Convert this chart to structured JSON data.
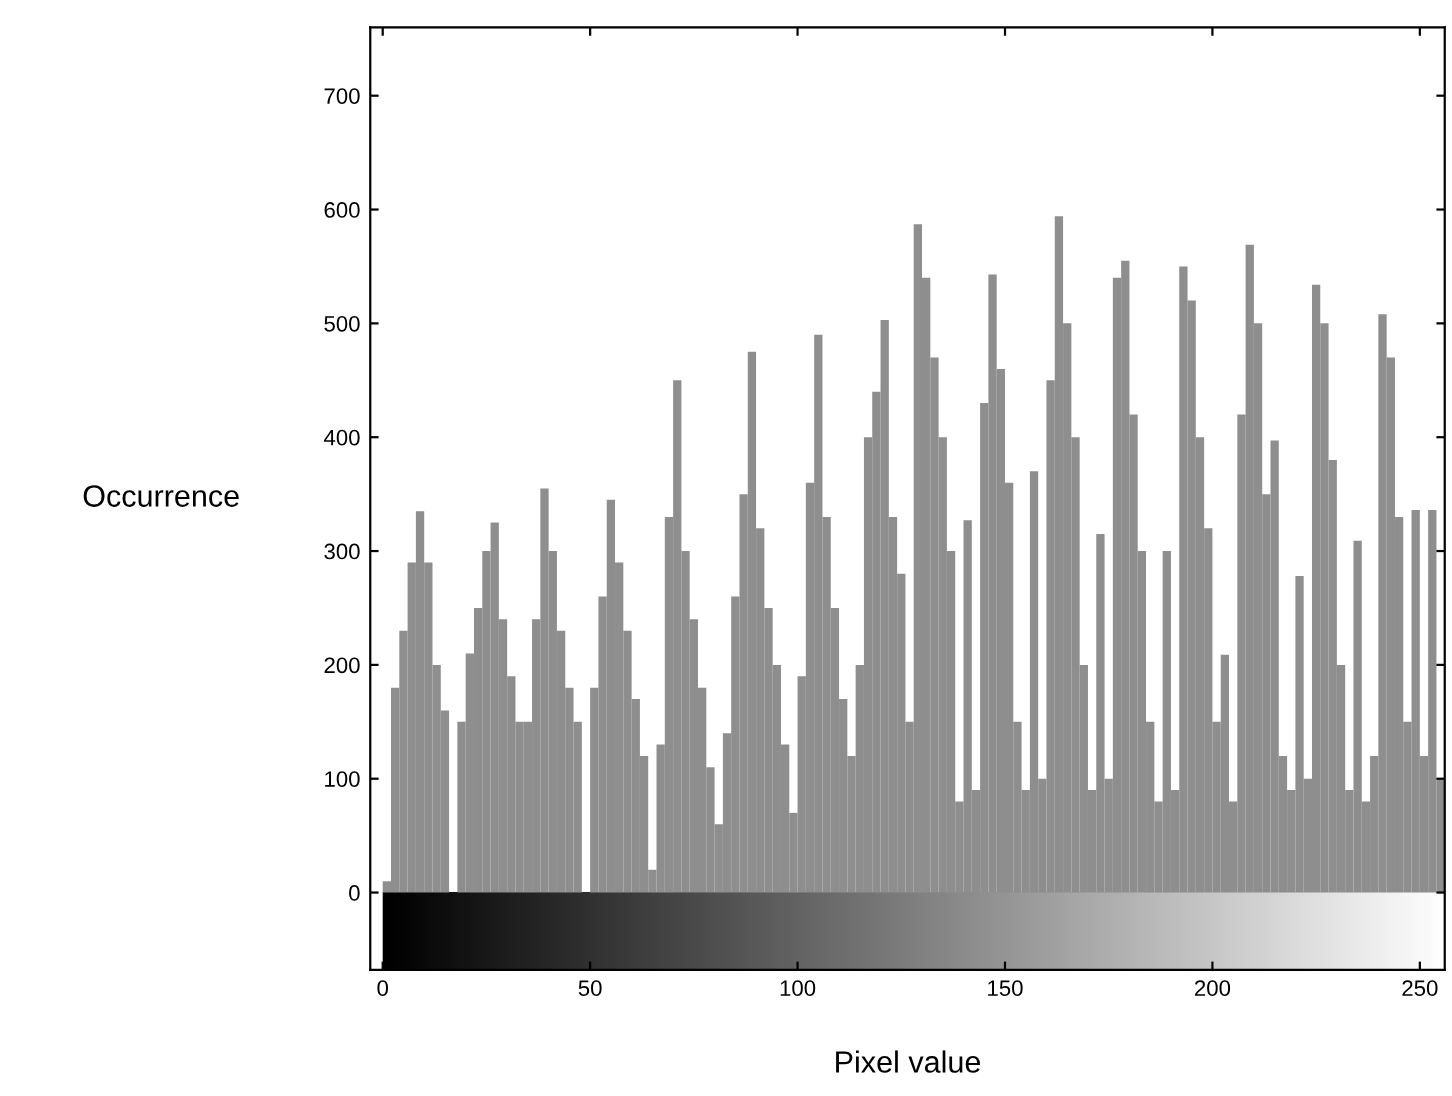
{
  "chart_data": {
    "type": "histogram",
    "xlabel": "Pixel value",
    "ylabel": "Occurrence",
    "bins": [
      0,
      2,
      4,
      6,
      8,
      10,
      12,
      14,
      16,
      18,
      20,
      22,
      24,
      26,
      28,
      30,
      32,
      34,
      36,
      38,
      40,
      42,
      44,
      46,
      48,
      50,
      52,
      54,
      56,
      58,
      60,
      62,
      64,
      66,
      68,
      70,
      72,
      74,
      76,
      78,
      80,
      82,
      84,
      86,
      88,
      90,
      92,
      94,
      96,
      98,
      100,
      102,
      104,
      106,
      108,
      110,
      112,
      114,
      116,
      118,
      120,
      122,
      124,
      126,
      128,
      130,
      132,
      134,
      136,
      138,
      140,
      142,
      144,
      146,
      148,
      150,
      152,
      154,
      156,
      158,
      160,
      162,
      164,
      166,
      168,
      170,
      172,
      174,
      176,
      178,
      180,
      182,
      184,
      186,
      188,
      190,
      192,
      194,
      196,
      198,
      200,
      202,
      204,
      206,
      208,
      210,
      212,
      214,
      216,
      218,
      220,
      222,
      224,
      226,
      228,
      230,
      232,
      234,
      236,
      238,
      240,
      242,
      244,
      246,
      248,
      250,
      252,
      254,
      256
    ],
    "values": [
      10,
      180,
      230,
      290,
      335,
      290,
      200,
      160,
      0,
      150,
      210,
      250,
      300,
      325,
      240,
      190,
      150,
      150,
      240,
      355,
      300,
      230,
      180,
      150,
      0,
      180,
      260,
      345,
      290,
      230,
      170,
      120,
      20,
      130,
      330,
      450,
      300,
      240,
      180,
      110,
      60,
      140,
      260,
      350,
      475,
      320,
      250,
      200,
      130,
      70,
      190,
      360,
      490,
      330,
      250,
      170,
      120,
      200,
      400,
      440,
      503,
      330,
      280,
      150,
      587,
      540,
      470,
      400,
      300,
      80,
      327,
      90,
      430,
      543,
      460,
      360,
      150,
      90,
      370,
      100,
      450,
      594,
      500,
      400,
      200,
      90,
      315,
      100,
      540,
      555,
      420,
      300,
      150,
      80,
      300,
      90,
      550,
      520,
      400,
      320,
      150,
      209,
      80,
      420,
      569,
      500,
      350,
      397,
      120,
      90,
      278,
      100,
      534,
      500,
      380,
      200,
      90,
      309,
      80,
      120,
      508,
      470,
      330,
      150,
      336,
      120,
      336,
      100
    ],
    "color": "#8e8e8e",
    "xlim": [
      -3,
      256
    ],
    "ylim": [
      -68,
      760
    ],
    "xticks": [
      0,
      50,
      100,
      150,
      200,
      250
    ],
    "yticks": [
      0,
      100,
      200,
      300,
      400,
      500,
      600,
      700
    ],
    "grid": false
  }
}
